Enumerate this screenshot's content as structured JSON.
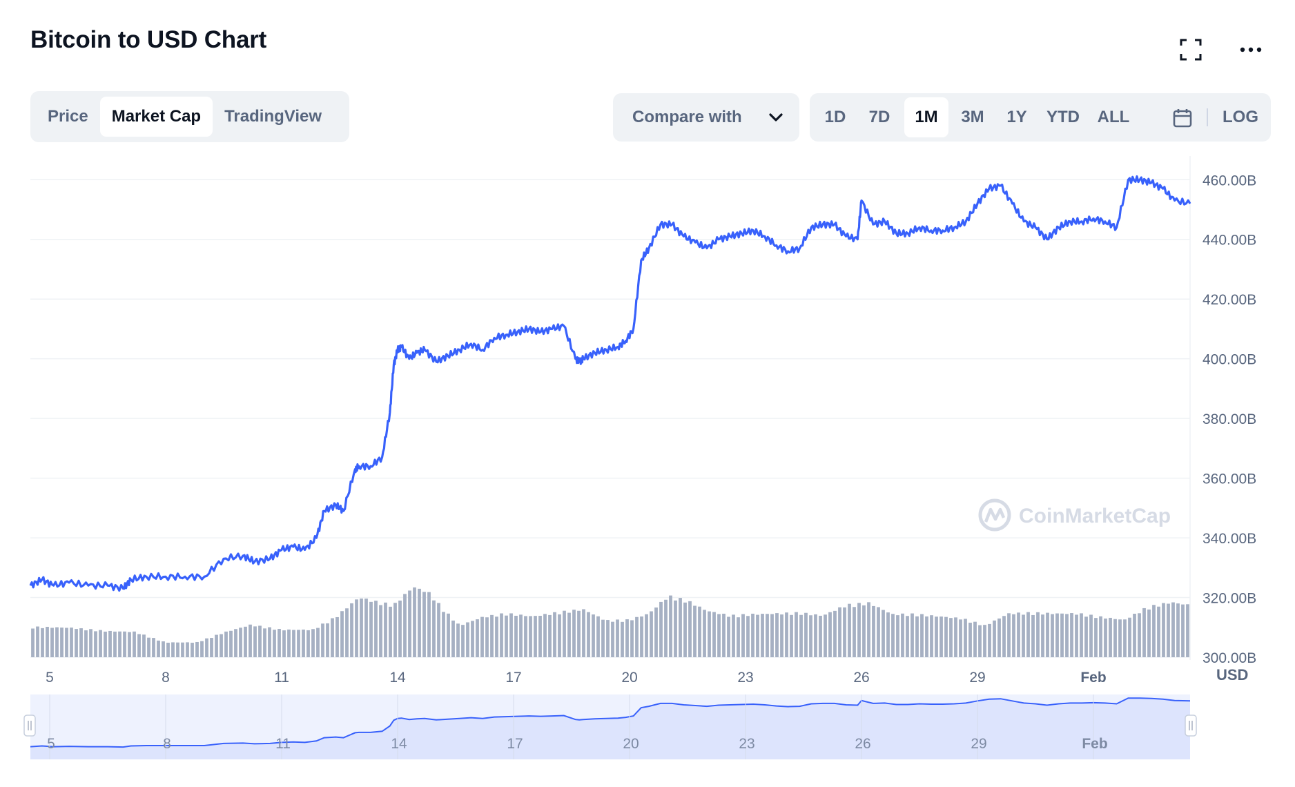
{
  "title": "Bitcoin to USD Chart",
  "view_tabs": [
    {
      "label": "Price",
      "active": false
    },
    {
      "label": "Market Cap",
      "active": true
    },
    {
      "label": "TradingView",
      "active": false
    }
  ],
  "compare_label": "Compare with",
  "ranges": [
    {
      "label": "1D",
      "active": false
    },
    {
      "label": "7D",
      "active": false
    },
    {
      "label": "1M",
      "active": true
    },
    {
      "label": "3M",
      "active": false
    },
    {
      "label": "1Y",
      "active": false
    },
    {
      "label": "YTD",
      "active": false
    },
    {
      "label": "ALL",
      "active": false
    }
  ],
  "log_label": "LOG",
  "icons": {
    "fullscreen": "fullscreen-icon",
    "more": "more-icon",
    "calendar": "calendar-icon",
    "chevron": "chevron-down-icon",
    "watermark": "coinmarketcap-logo-icon"
  },
  "watermark_text": "CoinMarketCap",
  "colors": {
    "line": "#3861fb",
    "volume": "#a6b0c3",
    "nav_fill": "#dde4fd",
    "grid": "#eff2f5",
    "text_muted": "#58667e"
  },
  "chart_data": {
    "type": "line",
    "title": "Bitcoin to USD Chart",
    "y_unit": "USD",
    "ylim": [
      300,
      467
    ],
    "y_ticks": [
      "460.00B",
      "440.00B",
      "420.00B",
      "400.00B",
      "380.00B",
      "360.00B",
      "340.00B",
      "320.00B",
      "300.00B"
    ],
    "x_ticks": [
      "5",
      "8",
      "11",
      "14",
      "17",
      "20",
      "23",
      "26",
      "29",
      "Feb"
    ],
    "xlim": [
      4.5,
      34.5
    ],
    "x_tick_positions": [
      5,
      8,
      11,
      14,
      17,
      20,
      23,
      26,
      29,
      32
    ],
    "grid": true,
    "series": [
      {
        "name": "",
        "x": [
          4.5,
          4.8,
          5.1,
          5.5,
          6.0,
          6.5,
          6.9,
          7.1,
          7.5,
          8.0,
          8.5,
          9.0,
          9.5,
          10.0,
          10.3,
          10.7,
          11.0,
          11.3,
          11.6,
          11.9,
          12.1,
          12.4,
          12.6,
          12.9,
          13.0,
          13.3,
          13.6,
          13.8,
          13.9,
          14.0,
          14.1,
          14.3,
          14.5,
          14.7,
          15.0,
          15.3,
          15.6,
          15.9,
          16.2,
          16.5,
          16.8,
          17.1,
          17.4,
          17.7,
          18.0,
          18.3,
          18.6,
          18.7,
          18.8,
          19.1,
          19.4,
          19.7,
          19.9,
          20.1,
          20.3,
          20.5,
          20.8,
          21.1,
          21.4,
          21.7,
          22.0,
          22.3,
          22.6,
          22.9,
          23.2,
          23.5,
          23.8,
          24.1,
          24.4,
          24.7,
          25.0,
          25.3,
          25.6,
          25.9,
          26.0,
          26.3,
          26.6,
          26.9,
          27.2,
          27.5,
          27.8,
          28.1,
          28.4,
          28.7,
          29.0,
          29.3,
          29.6,
          29.9,
          30.2,
          30.5,
          30.8,
          31.1,
          31.4,
          31.7,
          32.0,
          32.3,
          32.6,
          32.9,
          33.2,
          33.5,
          33.8,
          34.1,
          34.5
        ],
        "y": [
          324,
          326,
          324,
          325,
          324,
          324,
          323,
          326,
          327,
          327,
          327,
          327,
          333,
          334,
          332,
          333,
          336,
          337,
          336,
          340,
          349,
          351,
          349,
          363,
          364,
          364,
          367,
          382,
          398,
          403,
          404,
          400,
          402,
          403,
          399,
          401,
          403,
          405,
          403,
          407,
          408,
          409,
          410,
          409,
          410,
          411,
          400,
          399,
          400,
          402,
          403,
          404,
          406,
          410,
          433,
          437,
          445,
          445,
          441,
          439,
          437,
          440,
          441,
          442,
          443,
          441,
          438,
          436,
          437,
          444,
          445,
          445,
          441,
          440,
          453,
          445,
          446,
          442,
          442,
          444,
          443,
          443,
          444,
          446,
          452,
          457,
          458,
          452,
          446,
          444,
          440,
          444,
          446,
          446,
          447,
          446,
          444,
          460,
          460,
          459,
          457,
          453,
          452
        ]
      }
    ],
    "volume_series": {
      "x": [
        4.5,
        5.5,
        6.5,
        7.2,
        8.0,
        8.8,
        9.5,
        10.2,
        11.0,
        11.8,
        12.4,
        13.0,
        13.5,
        13.9,
        14.4,
        14.8,
        15.2,
        15.6,
        16.2,
        16.8,
        17.5,
        18.2,
        18.8,
        19.4,
        20.0,
        20.5,
        21.0,
        21.5,
        22.0,
        22.6,
        23.2,
        23.8,
        24.4,
        25.0,
        25.6,
        26.2,
        26.8,
        27.4,
        28.0,
        28.6,
        29.2,
        29.8,
        30.4,
        31.0,
        31.6,
        32.2,
        32.8,
        33.4,
        34.0,
        34.5
      ],
      "y": [
        0.43,
        0.42,
        0.37,
        0.36,
        0.21,
        0.21,
        0.35,
        0.46,
        0.39,
        0.39,
        0.57,
        0.85,
        0.78,
        0.74,
        1.0,
        0.92,
        0.67,
        0.45,
        0.57,
        0.62,
        0.58,
        0.64,
        0.68,
        0.52,
        0.53,
        0.62,
        0.87,
        0.8,
        0.66,
        0.59,
        0.61,
        0.62,
        0.63,
        0.59,
        0.74,
        0.77,
        0.61,
        0.61,
        0.58,
        0.55,
        0.45,
        0.62,
        0.63,
        0.62,
        0.62,
        0.57,
        0.53,
        0.71,
        0.78,
        0.74
      ]
    }
  }
}
